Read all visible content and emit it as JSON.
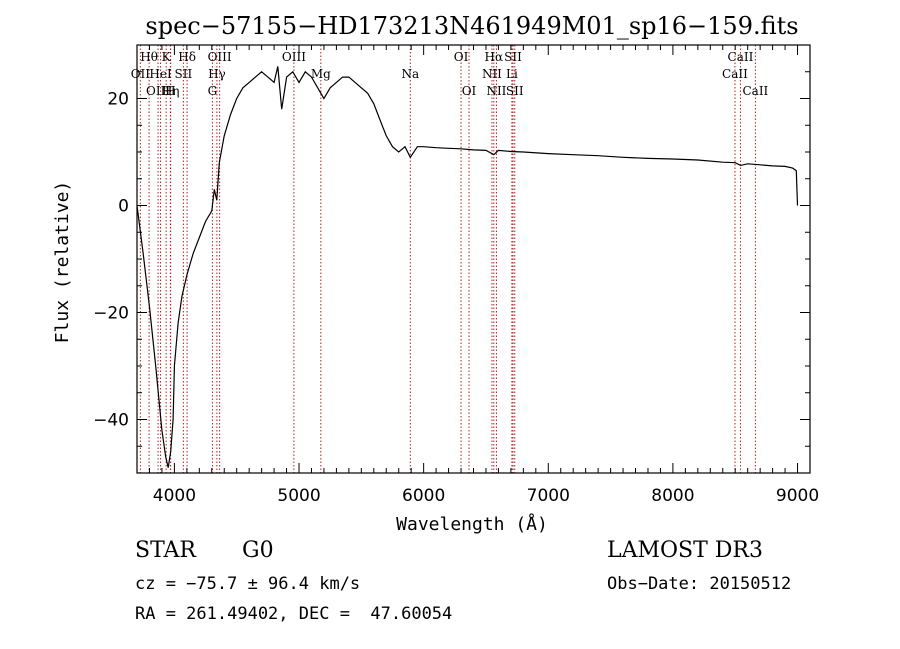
{
  "chart_data": {
    "type": "line",
    "title": "spec−57155−HD173213N461949M01_sp16−159.fits",
    "xlabel": "Wavelength (Å)",
    "ylabel": "Flux (relative)",
    "xlim": [
      3700,
      9100
    ],
    "ylim": [
      -50,
      30
    ],
    "xticks": [
      4000,
      5000,
      6000,
      7000,
      8000,
      9000
    ],
    "xtick_labels": [
      "4000",
      "5000",
      "6000",
      "7000",
      "8000",
      "9000"
    ],
    "yticks": [
      -40,
      -20,
      0,
      20
    ],
    "ytick_labels": [
      "−40",
      "−20",
      "0",
      "20"
    ],
    "series": [
      {
        "name": "flux",
        "x": [
          3700,
          3750,
          3800,
          3850,
          3900,
          3930,
          3950,
          3970,
          3990,
          4000,
          4030,
          4060,
          4100,
          4150,
          4200,
          4250,
          4300,
          4320,
          4340,
          4360,
          4400,
          4450,
          4500,
          4550,
          4600,
          4650,
          4700,
          4750,
          4800,
          4830,
          4861,
          4900,
          4950,
          5000,
          5050,
          5100,
          5150,
          5200,
          5250,
          5300,
          5350,
          5400,
          5450,
          5500,
          5550,
          5600,
          5650,
          5700,
          5750,
          5800,
          5850,
          5893,
          5950,
          6000,
          6100,
          6200,
          6300,
          6400,
          6500,
          6563,
          6600,
          6700,
          6800,
          7000,
          7200,
          7400,
          7600,
          7800,
          8000,
          8200,
          8400,
          8500,
          8542,
          8600,
          8700,
          8800,
          8900,
          8960,
          8990,
          9000
        ],
        "y": [
          0,
          -9,
          -19,
          -30,
          -42,
          -47,
          -49,
          -46,
          -40,
          -30,
          -22,
          -17,
          -13,
          -9,
          -6,
          -3,
          -1,
          3,
          1,
          8,
          13,
          17,
          20,
          22,
          23,
          24,
          25,
          24,
          23,
          26,
          18,
          24,
          25,
          23,
          25,
          24,
          22,
          20,
          22,
          23,
          24,
          24,
          23,
          22,
          21,
          19,
          16,
          13,
          11,
          10,
          11,
          9,
          11,
          11,
          10.8,
          10.7,
          10.6,
          10.4,
          10.3,
          9.5,
          10.3,
          10.1,
          10,
          9.7,
          9.5,
          9.3,
          9.0,
          8.8,
          8.7,
          8.5,
          8.1,
          8.0,
          7.5,
          7.8,
          7.6,
          7.4,
          7.3,
          7.0,
          6.5,
          0
        ]
      }
    ],
    "lines": [
      {
        "label": "Hθ",
        "x": 3797,
        "row": 0
      },
      {
        "label": "OII",
        "x": 3727,
        "row": 1
      },
      {
        "label": "OIII",
        "x": 3869,
        "row": 2
      },
      {
        "label": "HeI",
        "x": 3889,
        "row": 1
      },
      {
        "label": "K",
        "x": 3934,
        "row": 0
      },
      {
        "label": "Hη",
        "x": 3970,
        "row": 2
      },
      {
        "label": "H",
        "x": 3968,
        "row": 2
      },
      {
        "label": "Hδ",
        "x": 4102,
        "row": 0
      },
      {
        "label": "SII",
        "x": 4072,
        "row": 1
      },
      {
        "label": "OIII",
        "x": 4363,
        "row": 0
      },
      {
        "label": "Hγ",
        "x": 4341,
        "row": 1
      },
      {
        "label": "G",
        "x": 4305,
        "row": 2
      },
      {
        "label": "OIII",
        "x": 4959,
        "row": 0
      },
      {
        "label": "Mg",
        "x": 5175,
        "row": 1
      },
      {
        "label": "Na",
        "x": 5893,
        "row": 1
      },
      {
        "label": "OI",
        "x": 6300,
        "row": 0
      },
      {
        "label": "OI",
        "x": 6364,
        "row": 2
      },
      {
        "label": "Hα",
        "x": 6563,
        "row": 0
      },
      {
        "label": "NII",
        "x": 6548,
        "row": 1
      },
      {
        "label": "NII",
        "x": 6584,
        "row": 2
      },
      {
        "label": "SII",
        "x": 6717,
        "row": 0
      },
      {
        "label": "Li",
        "x": 6708,
        "row": 1
      },
      {
        "label": "SII",
        "x": 6731,
        "row": 2
      },
      {
        "label": "CaII",
        "x": 8542,
        "row": 0
      },
      {
        "label": "CaII",
        "x": 8498,
        "row": 1
      },
      {
        "label": "CaII",
        "x": 8662,
        "row": 2
      }
    ],
    "grid": false,
    "legend": "none"
  },
  "info": {
    "object_class": "STAR",
    "subclass": "G0",
    "survey": "LAMOST DR3",
    "redshift": "cz = −75.7 ± 96.4 km/s",
    "obs_date": "Obs−Date: 20150512",
    "coords": "RA = 261.49402, DEC =  47.60054"
  },
  "colors": {
    "spectrum": "#000000",
    "line_marker": "#b22222",
    "axis": "#000000"
  }
}
